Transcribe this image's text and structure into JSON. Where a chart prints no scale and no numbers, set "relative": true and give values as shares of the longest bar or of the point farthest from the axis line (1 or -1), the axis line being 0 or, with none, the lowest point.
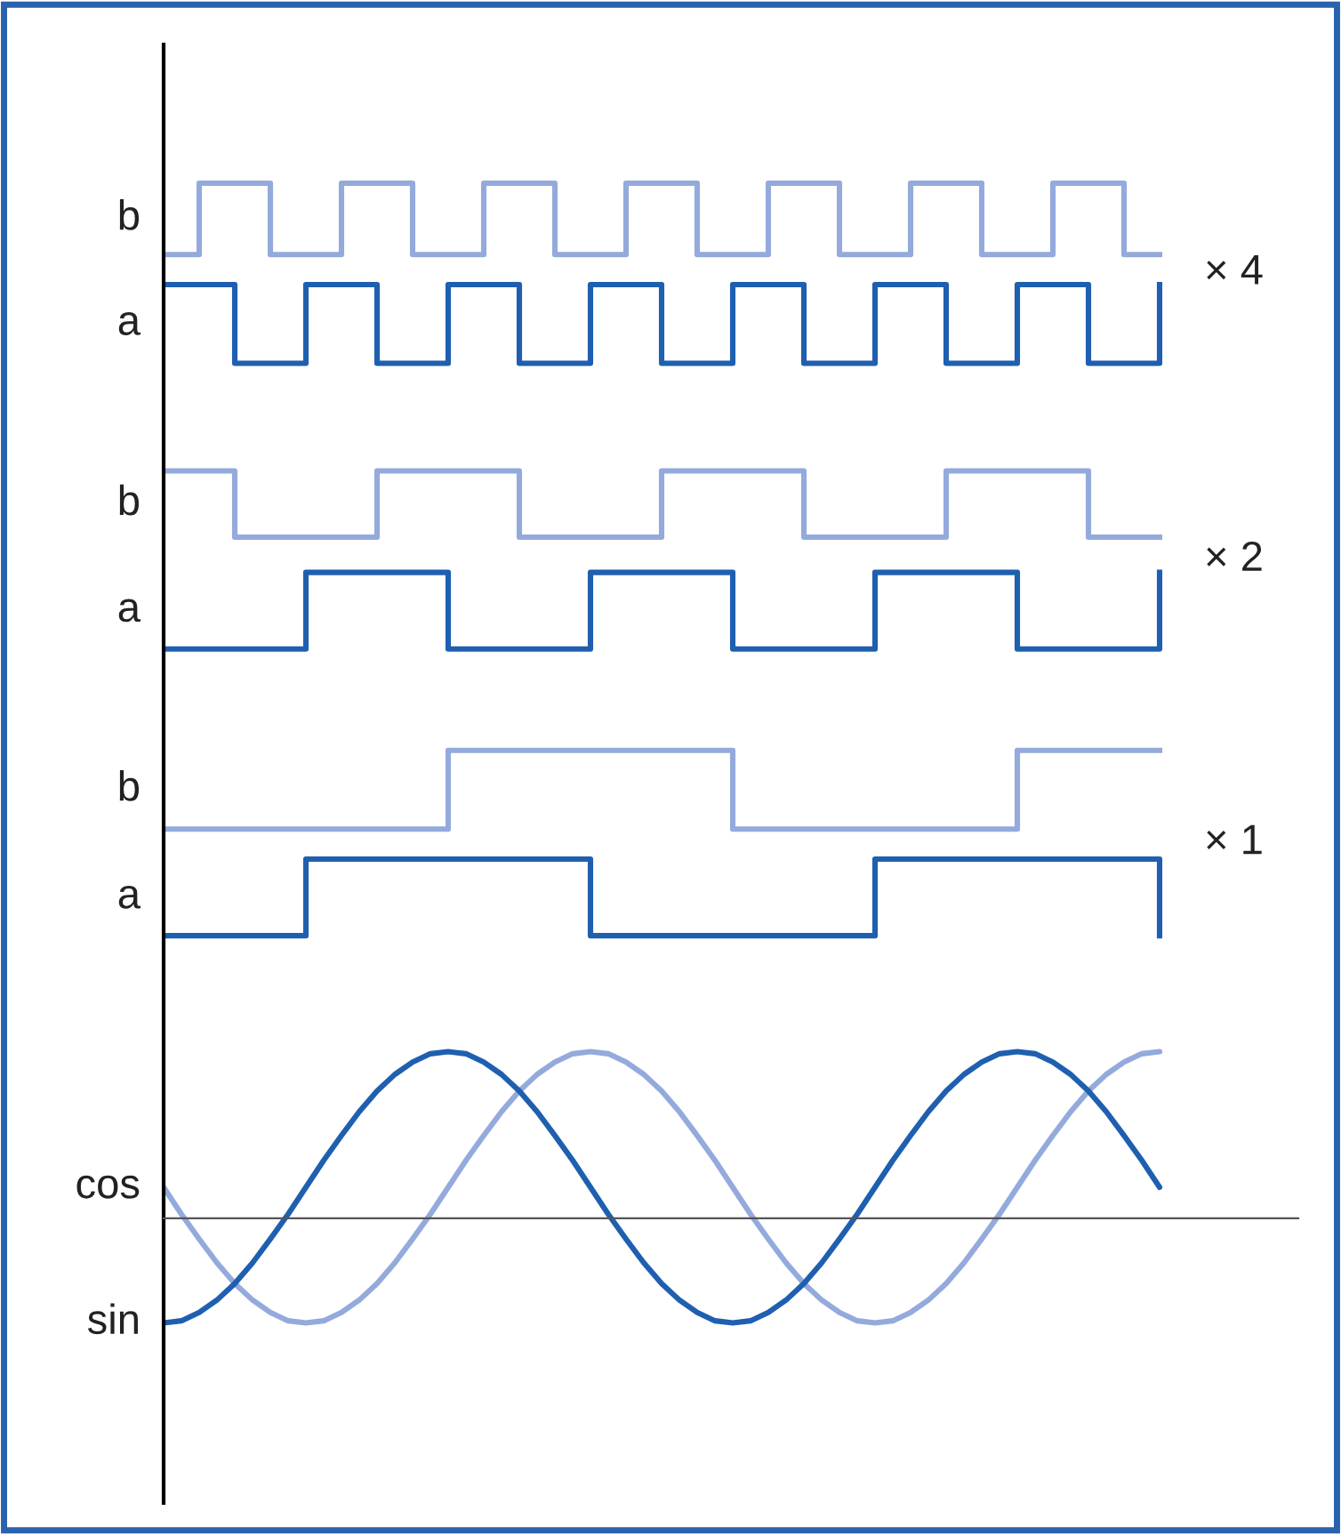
{
  "chart_data": {
    "type": "line",
    "relative": true,
    "legend": false,
    "categories": [
      null,
      null,
      null,
      null,
      null,
      null,
      null,
      null,
      null,
      null,
      null,
      null,
      null,
      null,
      null,
      null,
      null,
      null,
      null,
      null,
      null,
      null,
      null,
      null,
      null,
      null,
      null,
      null,
      null,
      null,
      null,
      null,
      null,
      null,
      null,
      null,
      null,
      null,
      null,
      null,
      null,
      null,
      null,
      null,
      null,
      null,
      null,
      null,
      null,
      null,
      null,
      null,
      null,
      null,
      null,
      null,
      null
    ],
    "series": [
      {
        "name": "b",
        "type": "step",
        "color": "#94aadc",
        "values": [
          0.931,
          0.931,
          1.0,
          1.0,
          1.0,
          1.0,
          0.931,
          0.931,
          0.931,
          0.931,
          1.0,
          1.0,
          1.0,
          1.0,
          0.931,
          0.931,
          0.931,
          0.931,
          1.0,
          1.0,
          1.0,
          1.0,
          0.931,
          0.931,
          0.931,
          0.931,
          1.0,
          1.0,
          1.0,
          1.0,
          0.931,
          0.931,
          0.931,
          0.931,
          1.0,
          1.0,
          1.0,
          1.0,
          0.931,
          0.931,
          0.931,
          0.931,
          1.0,
          1.0,
          1.0,
          1.0,
          0.931,
          0.931,
          0.931,
          0.931,
          1.0,
          1.0,
          1.0,
          1.0,
          0.931,
          0.931,
          0.931
        ]
      },
      {
        "name": "a",
        "type": "step",
        "color": "#1f5fb0",
        "values": [
          0.902,
          0.902,
          0.902,
          0.902,
          0.826,
          0.826,
          0.826,
          0.826,
          0.902,
          0.902,
          0.902,
          0.902,
          0.826,
          0.826,
          0.826,
          0.826,
          0.902,
          0.902,
          0.902,
          0.902,
          0.826,
          0.826,
          0.826,
          0.826,
          0.902,
          0.902,
          0.902,
          0.902,
          0.826,
          0.826,
          0.826,
          0.826,
          0.902,
          0.902,
          0.902,
          0.902,
          0.826,
          0.826,
          0.826,
          0.826,
          0.902,
          0.902,
          0.902,
          0.902,
          0.826,
          0.826,
          0.826,
          0.826,
          0.902,
          0.902,
          0.902,
          0.902,
          0.826,
          0.826,
          0.826,
          0.826,
          0.902
        ]
      },
      {
        "name": "b",
        "type": "step",
        "color": "#94aadc",
        "values": [
          0.722,
          0.722,
          0.722,
          0.722,
          0.658,
          0.658,
          0.658,
          0.658,
          0.658,
          0.658,
          0.658,
          0.658,
          0.722,
          0.722,
          0.722,
          0.722,
          0.722,
          0.722,
          0.722,
          0.722,
          0.658,
          0.658,
          0.658,
          0.658,
          0.658,
          0.658,
          0.658,
          0.658,
          0.722,
          0.722,
          0.722,
          0.722,
          0.722,
          0.722,
          0.722,
          0.722,
          0.658,
          0.658,
          0.658,
          0.658,
          0.658,
          0.658,
          0.658,
          0.658,
          0.722,
          0.722,
          0.722,
          0.722,
          0.722,
          0.722,
          0.722,
          0.722,
          0.658,
          0.658,
          0.658,
          0.658,
          0.658
        ]
      },
      {
        "name": "a",
        "type": "step",
        "color": "#1f5fb0",
        "values": [
          0.55,
          0.55,
          0.55,
          0.55,
          0.55,
          0.55,
          0.55,
          0.55,
          0.624,
          0.624,
          0.624,
          0.624,
          0.624,
          0.624,
          0.624,
          0.624,
          0.55,
          0.55,
          0.55,
          0.55,
          0.55,
          0.55,
          0.55,
          0.55,
          0.624,
          0.624,
          0.624,
          0.624,
          0.624,
          0.624,
          0.624,
          0.624,
          0.55,
          0.55,
          0.55,
          0.55,
          0.55,
          0.55,
          0.55,
          0.55,
          0.624,
          0.624,
          0.624,
          0.624,
          0.624,
          0.624,
          0.624,
          0.624,
          0.55,
          0.55,
          0.55,
          0.55,
          0.55,
          0.55,
          0.55,
          0.55,
          0.624
        ]
      },
      {
        "name": "b",
        "type": "step",
        "color": "#94aadc",
        "values": [
          0.376,
          0.376,
          0.376,
          0.376,
          0.376,
          0.376,
          0.376,
          0.376,
          0.376,
          0.376,
          0.376,
          0.376,
          0.376,
          0.376,
          0.376,
          0.376,
          0.452,
          0.452,
          0.452,
          0.452,
          0.452,
          0.452,
          0.452,
          0.452,
          0.452,
          0.452,
          0.452,
          0.452,
          0.452,
          0.452,
          0.452,
          0.452,
          0.376,
          0.376,
          0.376,
          0.376,
          0.376,
          0.376,
          0.376,
          0.376,
          0.376,
          0.376,
          0.376,
          0.376,
          0.376,
          0.376,
          0.376,
          0.376,
          0.452,
          0.452,
          0.452,
          0.452,
          0.452,
          0.452,
          0.452,
          0.452,
          0.452
        ]
      },
      {
        "name": "a",
        "type": "step",
        "color": "#1f5fb0",
        "values": [
          0.273,
          0.273,
          0.273,
          0.273,
          0.273,
          0.273,
          0.273,
          0.273,
          0.347,
          0.347,
          0.347,
          0.347,
          0.347,
          0.347,
          0.347,
          0.347,
          0.347,
          0.347,
          0.347,
          0.347,
          0.347,
          0.347,
          0.347,
          0.347,
          0.273,
          0.273,
          0.273,
          0.273,
          0.273,
          0.273,
          0.273,
          0.273,
          0.273,
          0.273,
          0.273,
          0.273,
          0.273,
          0.273,
          0.273,
          0.273,
          0.347,
          0.347,
          0.347,
          0.347,
          0.347,
          0.347,
          0.347,
          0.347,
          0.347,
          0.347,
          0.347,
          0.347,
          0.347,
          0.347,
          0.347,
          0.347,
          0.273
        ]
      },
      {
        "name": "cos",
        "color": "#94aadc",
        "values": [
          0.03,
          0.004,
          -0.02,
          -0.043,
          -0.063,
          -0.079,
          -0.091,
          -0.099,
          -0.101,
          -0.099,
          -0.091,
          -0.079,
          -0.063,
          -0.043,
          -0.02,
          0.004,
          0.03,
          0.056,
          0.08,
          0.103,
          0.123,
          0.139,
          0.151,
          0.159,
          0.161,
          0.159,
          0.151,
          0.139,
          0.123,
          0.103,
          0.08,
          0.056,
          0.03,
          0.004,
          -0.02,
          -0.043,
          -0.063,
          -0.079,
          -0.091,
          -0.099,
          -0.101,
          -0.099,
          -0.091,
          -0.079,
          -0.063,
          -0.043,
          -0.02,
          0.004,
          0.03,
          0.056,
          0.08,
          0.103,
          0.123,
          0.139,
          0.151,
          0.159,
          0.161
        ]
      },
      {
        "name": "sin",
        "color": "#1f5fb0",
        "values": [
          -0.101,
          -0.099,
          -0.091,
          -0.079,
          -0.063,
          -0.043,
          -0.02,
          0.004,
          0.03,
          0.056,
          0.08,
          0.103,
          0.123,
          0.139,
          0.151,
          0.159,
          0.161,
          0.159,
          0.151,
          0.139,
          0.123,
          0.103,
          0.08,
          0.056,
          0.03,
          0.004,
          -0.02,
          -0.043,
          -0.063,
          -0.079,
          -0.091,
          -0.099,
          -0.101,
          -0.099,
          -0.091,
          -0.079,
          -0.063,
          -0.043,
          -0.02,
          0.004,
          0.03,
          0.056,
          0.08,
          0.103,
          0.123,
          0.139,
          0.151,
          0.159,
          0.161,
          0.159,
          0.151,
          0.139,
          0.123,
          0.103,
          0.08,
          0.056,
          0.03
        ]
      }
    ],
    "annotations": [
      "× 4",
      "× 2",
      "× 1"
    ]
  }
}
